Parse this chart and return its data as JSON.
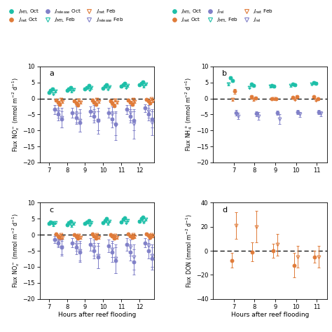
{
  "teal": "#1dbfa8",
  "orange": "#e07b39",
  "purple": "#8080c8",
  "panel_a": {
    "title": "a",
    "ylabel": "Flux NO$_x^-$ (mmol m$^{-2}$ d$^{-1}$)",
    "ylim": [
      -20,
      10
    ],
    "yticks": [
      -20,
      -15,
      -10,
      -5,
      0,
      5,
      10
    ],
    "xlim": [
      6.5,
      12.8
    ],
    "xticks": [
      7,
      8,
      9,
      10,
      11,
      12
    ],
    "series": {
      "JMTL_oct": {
        "x": [
          7.0,
          7.1,
          7.2,
          8.0,
          8.1,
          8.2,
          9.0,
          9.1,
          9.2,
          10.0,
          10.1,
          10.2,
          11.0,
          11.1,
          11.2,
          12.0,
          12.1,
          12.2
        ],
        "y": [
          1.8,
          2.5,
          3.0,
          2.5,
          3.0,
          3.5,
          3.0,
          3.5,
          4.0,
          3.2,
          3.8,
          4.3,
          3.8,
          4.3,
          4.8,
          4.2,
          4.8,
          5.2
        ],
        "yerr": [
          0.3,
          0.3,
          0.4,
          0.3,
          0.3,
          0.3,
          0.3,
          0.3,
          0.3,
          0.3,
          0.3,
          0.3,
          0.3,
          0.3,
          0.3,
          0.3,
          0.3,
          0.3
        ],
        "color": "#1dbfa8",
        "marker": "o",
        "filled": true
      },
      "JMTL_feb": {
        "x": [
          7.25,
          7.35,
          8.25,
          8.35,
          9.25,
          9.35,
          10.25,
          10.35,
          11.25,
          11.35,
          12.25,
          12.35
        ],
        "y": [
          1.5,
          2.2,
          2.2,
          2.8,
          2.8,
          3.3,
          3.0,
          3.6,
          3.5,
          4.0,
          3.8,
          4.5
        ],
        "yerr": [
          0.3,
          0.3,
          0.3,
          0.3,
          0.3,
          0.3,
          0.3,
          0.3,
          0.3,
          0.3,
          0.3,
          0.3
        ],
        "color": "#1dbfa8",
        "marker": "v",
        "filled": false
      },
      "Jnet_oct": {
        "x": [
          7.4,
          7.5,
          7.6,
          8.4,
          8.5,
          8.6,
          9.4,
          9.5,
          9.6,
          10.4,
          10.5,
          10.6,
          11.4,
          11.5,
          11.6,
          12.4,
          12.5,
          12.6
        ],
        "y": [
          -0.5,
          -1.2,
          -1.8,
          -0.8,
          -1.5,
          -2.0,
          -0.5,
          -1.2,
          -1.8,
          -0.8,
          -1.5,
          -2.2,
          -0.5,
          -1.2,
          -1.8,
          -0.3,
          -0.8,
          -1.5
        ],
        "yerr": [
          0.4,
          0.4,
          0.5,
          0.4,
          0.5,
          0.5,
          0.4,
          0.4,
          0.5,
          0.4,
          0.5,
          0.5,
          0.4,
          0.4,
          0.5,
          0.3,
          0.4,
          0.4
        ],
        "color": "#e07b39",
        "marker": "o",
        "filled": true
      },
      "Jnet_feb": {
        "x": [
          7.65,
          7.75,
          8.65,
          8.75,
          9.65,
          9.75,
          10.65,
          10.75,
          11.65,
          11.75,
          12.65,
          12.75
        ],
        "y": [
          -0.3,
          -1.0,
          -0.5,
          -1.2,
          -0.3,
          -1.0,
          -0.5,
          -1.2,
          -0.3,
          -1.0,
          -0.2,
          -0.8
        ],
        "yerr": [
          0.4,
          0.4,
          0.4,
          0.4,
          0.4,
          0.4,
          0.4,
          0.4,
          0.4,
          0.4,
          0.3,
          0.4
        ],
        "color": "#e07b39",
        "marker": "v",
        "filled": false
      },
      "Jrelease_oct": {
        "x": [
          7.3,
          7.5,
          7.7,
          8.3,
          8.5,
          8.7,
          9.3,
          9.5,
          9.7,
          10.3,
          10.5,
          10.7,
          11.3,
          11.5,
          11.7,
          12.3,
          12.5,
          12.7
        ],
        "y": [
          -3.5,
          -5.0,
          -6.5,
          -4.5,
          -6.0,
          -7.5,
          -4.0,
          -5.5,
          -7.0,
          -4.5,
          -6.5,
          -8.0,
          -3.5,
          -5.5,
          -7.0,
          -3.0,
          -5.0,
          -6.5
        ],
        "yerr": [
          1.5,
          2.0,
          2.5,
          1.5,
          2.0,
          3.0,
          1.5,
          2.0,
          3.0,
          1.5,
          2.5,
          3.5,
          1.5,
          2.0,
          3.0,
          1.2,
          2.0,
          2.5
        ],
        "color": "#8080c8",
        "marker": "o",
        "filled": true
      },
      "Jrelease_feb": {
        "x": [
          7.5,
          7.7,
          8.5,
          8.7,
          9.5,
          9.7,
          10.5,
          10.7,
          11.5,
          11.7,
          12.5,
          12.7
        ],
        "y": [
          -4.0,
          -6.0,
          -5.0,
          -7.0,
          -4.5,
          -7.0,
          -5.0,
          -8.5,
          -4.5,
          -8.0,
          -4.0,
          -7.5
        ],
        "yerr": [
          2.0,
          3.0,
          2.5,
          3.5,
          2.5,
          4.0,
          2.5,
          4.5,
          2.5,
          4.5,
          2.0,
          4.0
        ],
        "color": "#8080c8",
        "marker": "v",
        "filled": false
      }
    }
  },
  "panel_b": {
    "title": "b",
    "ylabel": "Flux NH$_4^+$ (mmol m$^{-2}$ d$^{-1}$)",
    "ylim": [
      -20,
      10
    ],
    "yticks": [
      -20,
      -15,
      -10,
      -5,
      0,
      5,
      10
    ],
    "xlim": [
      6.0,
      11.5
    ],
    "xticks": [
      7,
      8,
      9,
      10,
      11
    ],
    "series": {
      "JMTL_oct": {
        "x": [
          6.85,
          6.95,
          7.85,
          7.95,
          8.85,
          8.95,
          9.85,
          9.95,
          10.85,
          10.95
        ],
        "y": [
          6.5,
          5.5,
          4.5,
          4.0,
          4.0,
          3.8,
          4.5,
          4.2,
          5.0,
          4.8
        ],
        "yerr": [
          0.4,
          0.4,
          0.3,
          0.3,
          0.3,
          0.3,
          0.3,
          0.3,
          0.3,
          0.3
        ],
        "color": "#1dbfa8",
        "marker": "o",
        "filled": true
      },
      "JMTL_feb": {
        "x": [
          6.75,
          7.75,
          8.75,
          9.75,
          10.75
        ],
        "y": [
          4.5,
          3.5,
          3.8,
          4.0,
          4.5
        ],
        "yerr": [
          0.4,
          0.3,
          0.3,
          0.3,
          0.3
        ],
        "color": "#1dbfa8",
        "marker": "v",
        "filled": false
      },
      "Jnet_oct": {
        "x": [
          7.05,
          7.85,
          8.05,
          8.85,
          9.05,
          9.85,
          10.05,
          10.85,
          11.05
        ],
        "y": [
          2.2,
          0.5,
          0.2,
          0.0,
          -0.2,
          0.3,
          0.5,
          0.5,
          -0.2
        ],
        "yerr": [
          0.8,
          0.5,
          0.3,
          0.3,
          0.3,
          0.3,
          0.4,
          0.3,
          0.3
        ],
        "color": "#e07b39",
        "marker": "o",
        "filled": true
      },
      "Jnet_feb": {
        "x": [
          6.95,
          7.95,
          8.95,
          9.95,
          10.95
        ],
        "y": [
          -0.3,
          -0.3,
          -0.1,
          -0.3,
          -0.5
        ],
        "yerr": [
          0.4,
          0.4,
          0.3,
          0.3,
          0.3
        ],
        "color": "#e07b39",
        "marker": "v",
        "filled": false
      },
      "Jrelease_oct": {
        "x": [
          7.1,
          8.1,
          9.1,
          10.1,
          11.1
        ],
        "y": [
          -4.5,
          -4.8,
          -4.5,
          -4.3,
          -4.3
        ],
        "yerr": [
          0.8,
          0.7,
          0.7,
          0.7,
          0.7
        ],
        "color": "#8080c8",
        "marker": "o",
        "filled": true
      },
      "Jrelease_feb": {
        "x": [
          7.2,
          8.2,
          9.2,
          10.2,
          11.2
        ],
        "y": [
          -5.5,
          -5.5,
          -6.5,
          -5.0,
          -4.8
        ],
        "yerr": [
          1.0,
          1.2,
          1.5,
          0.8,
          0.8
        ],
        "color": "#8080c8",
        "marker": "v",
        "filled": false
      }
    }
  },
  "panel_c": {
    "title": "c",
    "ylabel": "Flux NO$_x^-$ (mmol m$^{-2}$ d$^{-1}$)",
    "ylim": [
      -20,
      10
    ],
    "yticks": [
      -20,
      -15,
      -10,
      -5,
      0,
      5,
      10
    ],
    "xlim": [
      6.5,
      12.8
    ],
    "xticks": [
      7,
      8,
      9,
      10,
      11,
      12
    ],
    "xlabel": "Hours after reef flooding",
    "series": {
      "JMTL_oct": {
        "x": [
          7.0,
          7.1,
          7.2,
          8.0,
          8.1,
          8.2,
          9.0,
          9.1,
          9.2,
          10.0,
          10.1,
          10.2,
          11.0,
          11.1,
          11.2,
          12.0,
          12.1,
          12.2
        ],
        "y": [
          3.5,
          4.0,
          3.8,
          3.2,
          3.8,
          4.2,
          3.5,
          4.0,
          4.5,
          3.8,
          4.5,
          5.0,
          4.0,
          4.8,
          5.3,
          4.3,
          5.0,
          5.5
        ],
        "yerr": [
          0.3,
          0.3,
          0.3,
          0.3,
          0.3,
          0.3,
          0.3,
          0.3,
          0.3,
          0.3,
          0.3,
          0.3,
          0.3,
          0.3,
          0.3,
          0.3,
          0.3,
          0.3
        ],
        "color": "#1dbfa8",
        "marker": "o",
        "filled": true
      },
      "JMTL_feb": {
        "x": [
          7.25,
          7.35,
          8.25,
          8.35,
          9.25,
          9.35,
          10.25,
          10.35,
          11.25,
          11.35,
          12.25,
          12.35
        ],
        "y": [
          3.0,
          3.8,
          2.8,
          3.5,
          3.2,
          3.8,
          3.5,
          4.2,
          3.8,
          4.5,
          4.0,
          4.8
        ],
        "yerr": [
          0.3,
          0.3,
          0.3,
          0.3,
          0.3,
          0.3,
          0.3,
          0.3,
          0.3,
          0.3,
          0.3,
          0.3
        ],
        "color": "#1dbfa8",
        "marker": "v",
        "filled": false
      },
      "Jnet_oct": {
        "x": [
          7.4,
          7.5,
          7.6,
          8.4,
          8.5,
          8.6,
          9.4,
          9.5,
          9.6,
          10.4,
          10.5,
          10.6,
          11.4,
          11.5,
          11.6,
          12.4,
          12.5,
          12.6
        ],
        "y": [
          0.2,
          -0.5,
          -1.0,
          0.0,
          -0.5,
          -1.0,
          0.2,
          -0.5,
          -1.0,
          0.0,
          -0.5,
          -1.0,
          0.2,
          -0.3,
          -0.8,
          0.3,
          -0.2,
          -0.8
        ],
        "yerr": [
          0.3,
          0.4,
          0.5,
          0.3,
          0.4,
          0.5,
          0.3,
          0.4,
          0.5,
          0.3,
          0.4,
          0.5,
          0.3,
          0.4,
          0.5,
          0.3,
          0.3,
          0.4
        ],
        "color": "#e07b39",
        "marker": "o",
        "filled": true
      },
      "Jnet_feb": {
        "x": [
          7.65,
          7.75,
          8.65,
          8.75,
          9.65,
          9.75,
          10.65,
          10.75,
          11.65,
          11.75,
          12.65,
          12.75
        ],
        "y": [
          0.0,
          -0.8,
          -0.2,
          -0.8,
          0.0,
          -0.8,
          -0.2,
          -0.8,
          0.0,
          -0.6,
          0.0,
          -0.5
        ],
        "yerr": [
          0.3,
          0.4,
          0.3,
          0.4,
          0.3,
          0.4,
          0.3,
          0.4,
          0.3,
          0.4,
          0.3,
          0.4
        ],
        "color": "#e07b39",
        "marker": "v",
        "filled": false
      },
      "Jrelease_oct": {
        "x": [
          7.3,
          7.5,
          7.7,
          8.3,
          8.5,
          8.7,
          9.3,
          9.5,
          9.7,
          10.3,
          10.5,
          10.7,
          11.3,
          11.5,
          11.7,
          12.3,
          12.5,
          12.7
        ],
        "y": [
          -1.5,
          -2.5,
          -4.0,
          -2.5,
          -4.0,
          -5.5,
          -3.0,
          -5.0,
          -7.0,
          -3.5,
          -5.5,
          -8.0,
          -3.0,
          -5.5,
          -8.5,
          -2.5,
          -5.0,
          -7.5
        ],
        "yerr": [
          1.0,
          1.5,
          2.0,
          1.5,
          2.0,
          3.0,
          2.0,
          2.5,
          3.5,
          2.0,
          3.0,
          4.0,
          2.0,
          2.5,
          4.0,
          1.5,
          2.5,
          3.5
        ],
        "color": "#8080c8",
        "marker": "o",
        "filled": true
      },
      "Jrelease_feb": {
        "x": [
          7.5,
          7.7,
          8.5,
          8.7,
          9.5,
          9.7,
          10.5,
          10.7,
          11.5,
          11.7,
          12.5,
          12.7
        ],
        "y": [
          -2.0,
          -4.0,
          -3.0,
          -5.0,
          -4.0,
          -6.5,
          -4.5,
          -7.5,
          -4.0,
          -7.0,
          -3.5,
          -6.5
        ],
        "yerr": [
          1.5,
          2.5,
          2.0,
          3.0,
          2.5,
          4.0,
          2.5,
          4.5,
          2.5,
          4.0,
          2.0,
          3.5
        ],
        "color": "#8080c8",
        "marker": "v",
        "filled": false
      }
    }
  },
  "panel_d": {
    "title": "d",
    "ylabel": "Flux DON (mmol m$^{-2}$ d$^{-1}$)",
    "ylim": [
      -40,
      40
    ],
    "yticks": [
      -40,
      -20,
      0,
      20,
      40
    ],
    "xlim": [
      6.0,
      11.5
    ],
    "xticks": [
      7,
      8,
      9,
      10,
      11
    ],
    "xlabel": "Hours after reef flooding",
    "series": {
      "Jnet_oct": {
        "x": [
          6.9,
          7.9,
          8.9,
          9.9,
          10.9
        ],
        "y": [
          -8.0,
          -1.0,
          0.0,
          -12.0,
          -5.0
        ],
        "yerr": [
          6.0,
          8.0,
          6.0,
          10.0,
          5.0
        ],
        "color": "#e07b39",
        "marker": "o",
        "filled": true
      },
      "Jnet_feb": {
        "x": [
          7.1,
          8.1,
          9.1,
          10.1,
          11.1
        ],
        "y": [
          21.0,
          20.0,
          5.0,
          -5.0,
          -5.0
        ],
        "yerr": [
          11.0,
          13.0,
          9.0,
          9.0,
          9.0
        ],
        "color": "#e07b39",
        "marker": "v",
        "filled": false
      }
    }
  },
  "legend_left": {
    "row1": [
      {
        "label": "$J_{\\mathrm{MTL}}$ Oct",
        "color": "#1dbfa8",
        "marker": "o",
        "filled": true
      },
      {
        "label": "$J_{\\mathrm{net}}$ Oct",
        "color": "#e07b39",
        "marker": "o",
        "filled": true
      },
      {
        "label": "$J_{\\mathrm{release}}$ Oct",
        "color": "#8080c8",
        "marker": "o",
        "filled": true
      }
    ],
    "row2": [
      {
        "label": "$J_{\\mathrm{MTL}}$ Feb",
        "color": "#1dbfa8",
        "marker": "v",
        "filled": false
      },
      {
        "label": "$J_{\\mathrm{net}}$ Feb",
        "color": "#e07b39",
        "marker": "v",
        "filled": false
      },
      {
        "label": "$J_{\\mathrm{release}}$ Feb",
        "color": "#8080c8",
        "marker": "v",
        "filled": false
      }
    ]
  },
  "legend_right": {
    "row1": [
      {
        "label": "$J_{\\mathrm{MTL}}$ Oct",
        "color": "#1dbfa8",
        "marker": "o",
        "filled": true
      },
      {
        "label": "$J_{\\mathrm{net}}$ Oct",
        "color": "#e07b39",
        "marker": "o",
        "filled": true
      },
      {
        "label": "$J_{\\mathrm{rel}}$",
        "color": "#8080c8",
        "marker": "o",
        "filled": true
      }
    ],
    "row2": [
      {
        "label": "$J_{\\mathrm{MTL}}$ Feb",
        "color": "#1dbfa8",
        "marker": "v",
        "filled": false
      },
      {
        "label": "$J_{\\mathrm{net}}$ Feb",
        "color": "#e07b39",
        "marker": "v",
        "filled": false
      },
      {
        "label": "$J_{\\mathrm{rel}}$",
        "color": "#8080c8",
        "marker": "v",
        "filled": false
      }
    ]
  }
}
